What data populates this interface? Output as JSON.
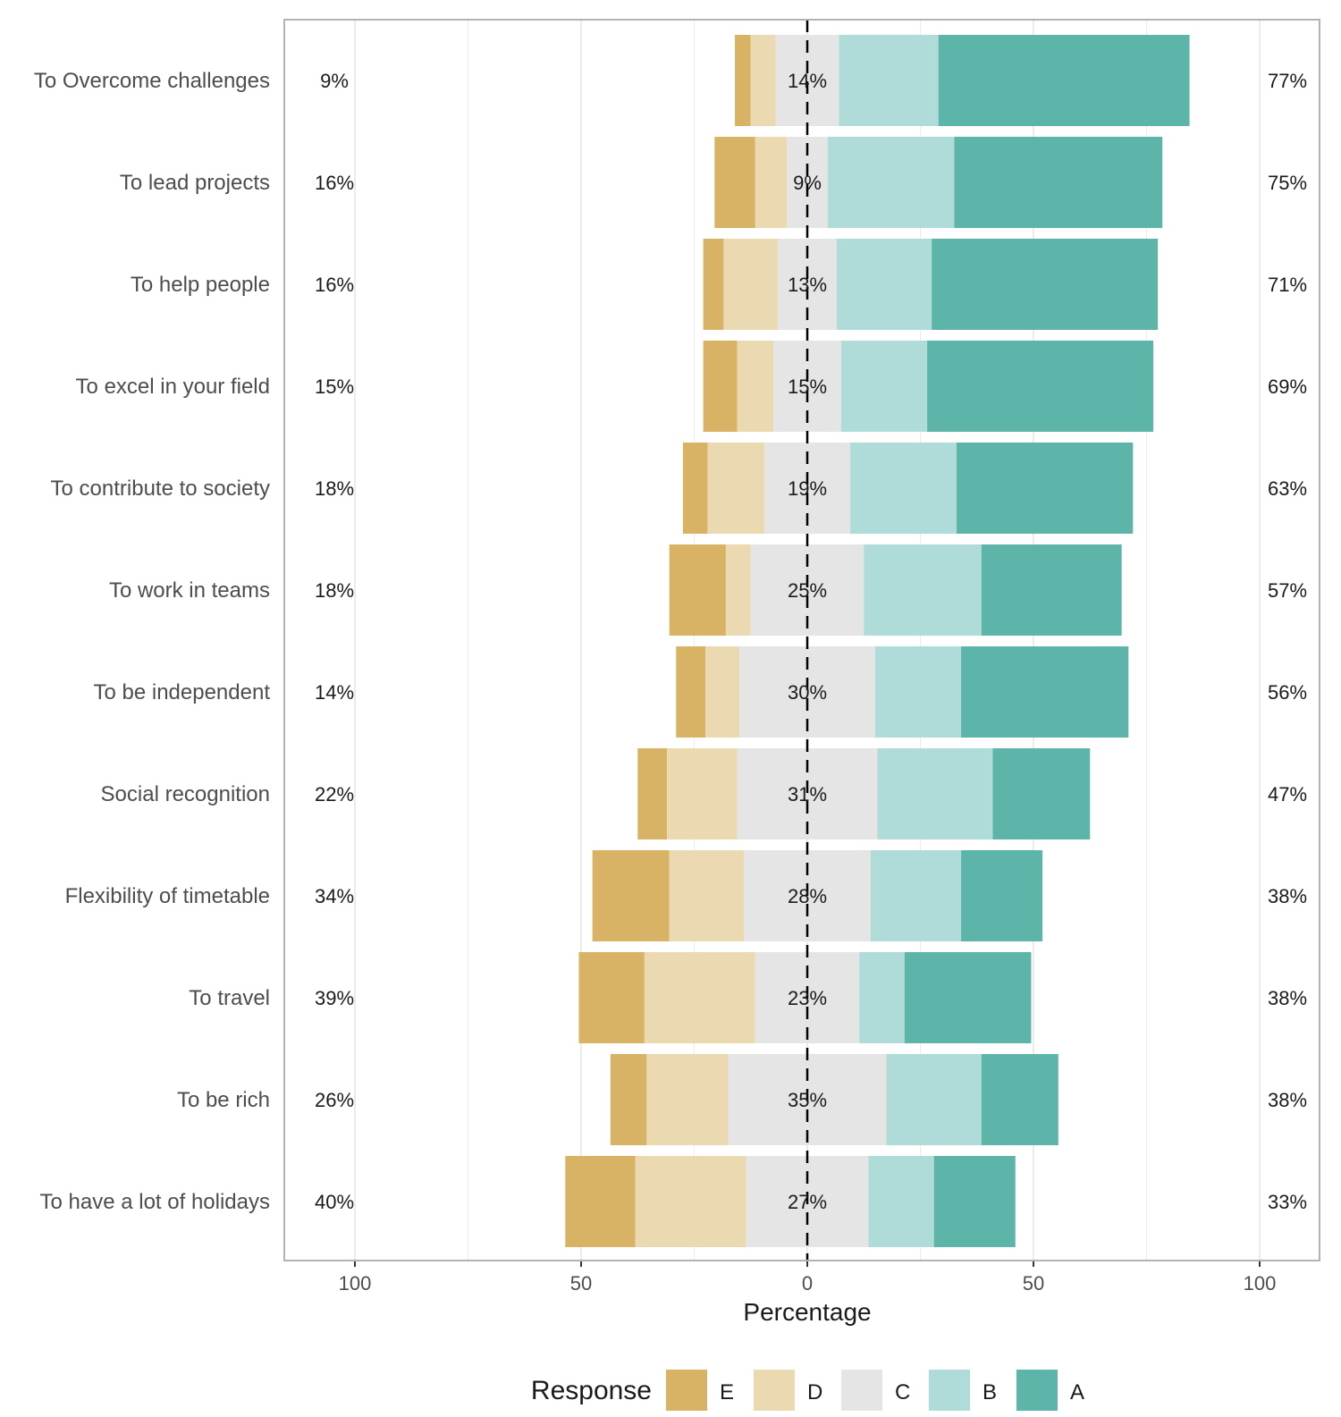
{
  "chart_data": {
    "type": "bar",
    "orientation": "horizontal-diverging",
    "xlabel": "Percentage",
    "xlim": [
      -100,
      100
    ],
    "xticks": [
      {
        "value": -100,
        "label": "100"
      },
      {
        "value": -50,
        "label": "50"
      },
      {
        "value": 0,
        "label": "0"
      },
      {
        "value": 50,
        "label": "50"
      },
      {
        "value": 100,
        "label": "100"
      }
    ],
    "legend": {
      "title": "Response",
      "placement": "bottom",
      "order": [
        "E",
        "D",
        "C",
        "B",
        "A"
      ]
    },
    "colors": {
      "E": "#d9b365",
      "D": "#ebd9b2",
      "C": "#e5e5e5",
      "B": "#afdcd8",
      "A": "#5db5aa"
    },
    "categories": [
      "To Overcome challenges",
      "To lead projects",
      "To help people",
      "To excel in your field",
      "To contribute to society",
      "To work in teams",
      "To be independent",
      "Social recognition",
      "Flexibility of timetable",
      "To travel",
      "To be rich",
      "To have a lot of holidays"
    ],
    "series": [
      {
        "name": "E",
        "values": [
          3.5,
          9,
          4.5,
          7.5,
          5.5,
          12.5,
          6.5,
          6.5,
          17,
          14.5,
          8,
          15.5
        ]
      },
      {
        "name": "D",
        "values": [
          5.5,
          7,
          12,
          8,
          12.5,
          5.5,
          7.5,
          15.5,
          16.5,
          24.5,
          18,
          24.5
        ]
      },
      {
        "name": "C",
        "values": [
          14,
          9,
          13,
          15,
          19,
          25,
          30,
          31,
          28,
          23,
          35,
          27
        ]
      },
      {
        "name": "B",
        "values": [
          22,
          28,
          21,
          19,
          23.5,
          26,
          19,
          25.5,
          20,
          10,
          21,
          14.5
        ]
      },
      {
        "name": "A",
        "values": [
          55.5,
          46,
          50,
          50,
          39,
          31,
          37,
          21.5,
          18,
          28,
          17,
          18
        ]
      }
    ],
    "labels": {
      "left": [
        "9%",
        "16%",
        "16%",
        "15%",
        "18%",
        "18%",
        "14%",
        "22%",
        "34%",
        "39%",
        "26%",
        "40%"
      ],
      "center": [
        "14%",
        "9%",
        "13%",
        "15%",
        "19%",
        "25%",
        "30%",
        "31%",
        "28%",
        "23%",
        "35%",
        "27%"
      ],
      "right": [
        "77%",
        "75%",
        "71%",
        "69%",
        "63%",
        "57%",
        "56%",
        "47%",
        "38%",
        "38%",
        "38%",
        "33%"
      ]
    },
    "grid": true
  }
}
